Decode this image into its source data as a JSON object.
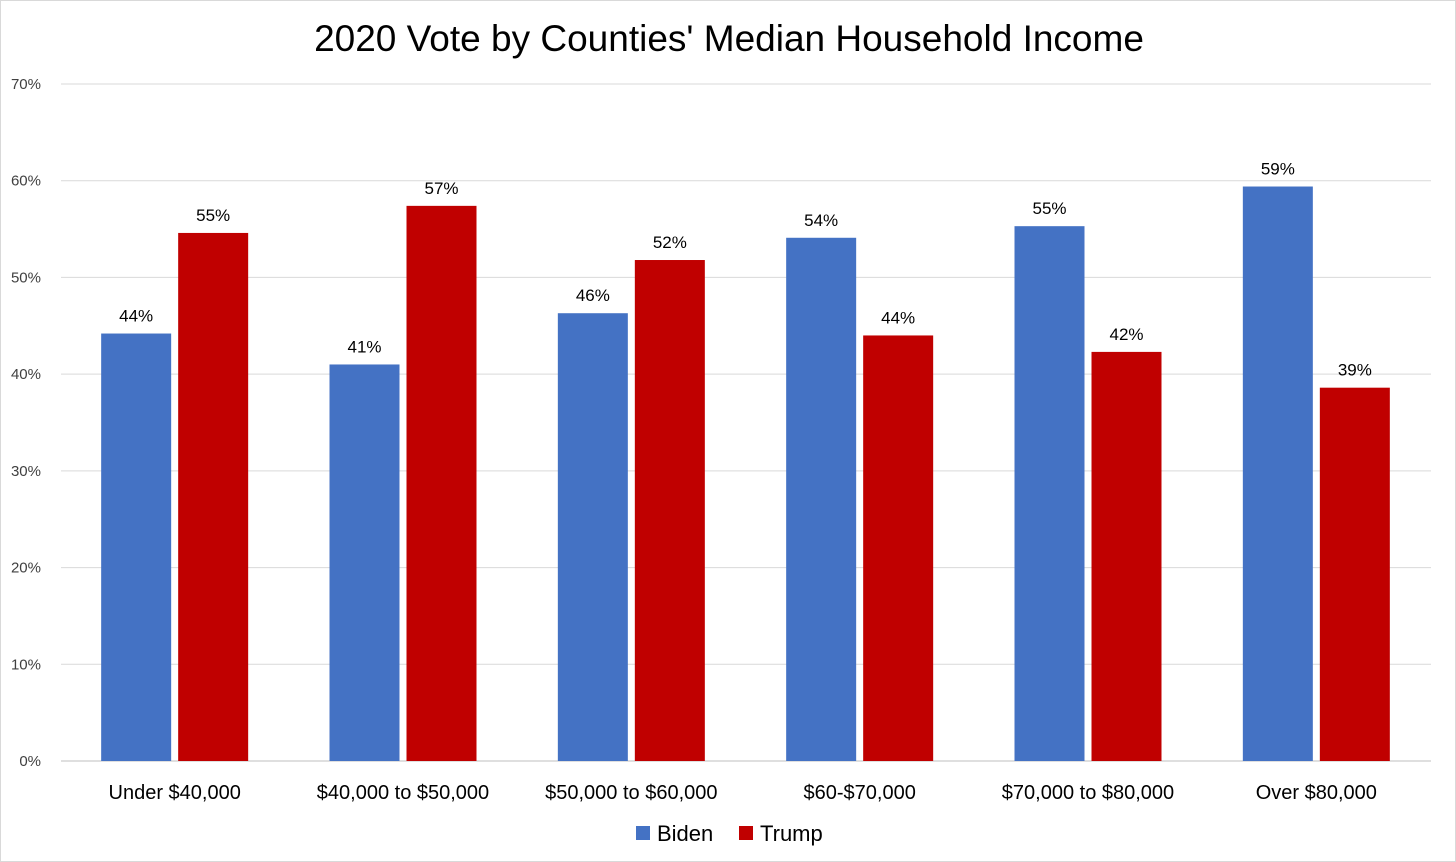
{
  "chart_data": {
    "type": "bar",
    "title": "2020 Vote by Counties' Median Household Income",
    "xlabel": "",
    "ylabel": "",
    "ylim": [
      0,
      70
    ],
    "yticks": [
      0,
      10,
      20,
      30,
      40,
      50,
      60,
      70
    ],
    "ytick_labels": [
      "0%",
      "10%",
      "20%",
      "30%",
      "40%",
      "50%",
      "60%",
      "70%"
    ],
    "grid": true,
    "legend_position": "bottom",
    "categories": [
      "Under $40,000",
      "$40,000 to $50,000",
      "$50,000 to $60,000",
      "$60-$70,000",
      "$70,000 to $80,000",
      "Over $80,000"
    ],
    "series": [
      {
        "name": "Biden",
        "color": "#4472C4",
        "values": [
          44.2,
          41.0,
          46.3,
          54.1,
          55.3,
          59.4
        ],
        "labels": [
          "44%",
          "41%",
          "46%",
          "54%",
          "55%",
          "59%"
        ]
      },
      {
        "name": "Trump",
        "color": "#C00000",
        "values": [
          54.6,
          57.4,
          51.8,
          44.0,
          42.3,
          38.6
        ],
        "labels": [
          "55%",
          "57%",
          "52%",
          "44%",
          "42%",
          "39%"
        ]
      }
    ]
  }
}
